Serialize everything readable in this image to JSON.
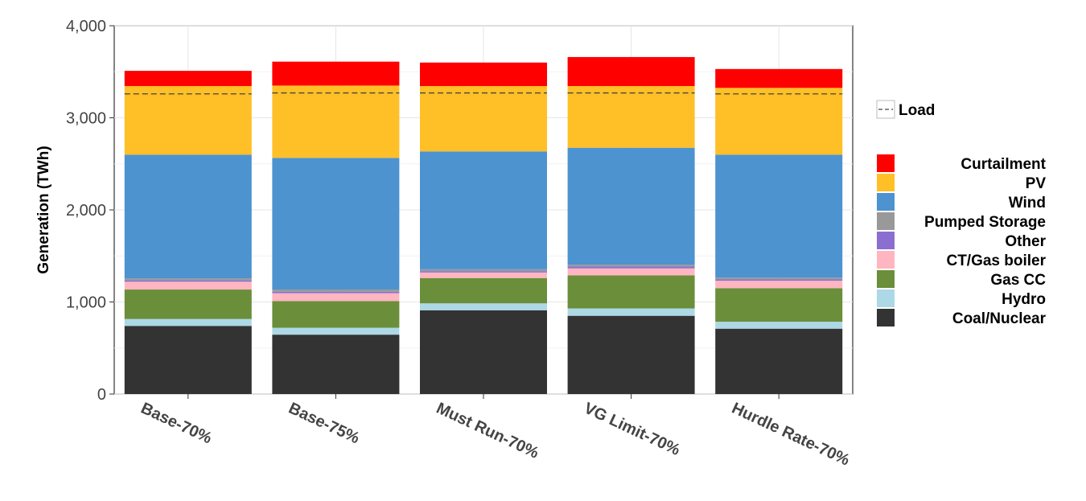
{
  "chart_data": {
    "type": "bar",
    "stacked": true,
    "title": "",
    "xlabel": "",
    "ylabel": "Generation (TWh)",
    "ylim": [
      0,
      4000
    ],
    "yticks": [
      0,
      1000,
      2000,
      3000,
      4000
    ],
    "ytick_labels": [
      "0",
      "1,000",
      "2,000",
      "3,000",
      "4,000"
    ],
    "grid": true,
    "legend_position": "right",
    "categories": [
      "Base-70%",
      "Base-75%",
      "Must Run-70%",
      "VG Limit-70%",
      "Hurdle Rate-70%"
    ],
    "series": [
      {
        "name": "Coal/Nuclear",
        "color": "#333333",
        "values": [
          740,
          645,
          910,
          850,
          710
        ]
      },
      {
        "name": "Hydro",
        "color": "#add8e6",
        "values": [
          75,
          75,
          75,
          80,
          75
        ]
      },
      {
        "name": "Gas CC",
        "color": "#6b8e3a",
        "values": [
          320,
          290,
          275,
          360,
          365
        ]
      },
      {
        "name": "CT/Gas boiler",
        "color": "#ffb6c1",
        "values": [
          85,
          85,
          60,
          75,
          80
        ]
      },
      {
        "name": "Other",
        "color": "#8a6fd0",
        "values": [
          15,
          15,
          15,
          20,
          15
        ]
      },
      {
        "name": "Pumped Storage",
        "color": "#999999",
        "values": [
          20,
          25,
          20,
          20,
          20
        ]
      },
      {
        "name": "Wind",
        "color": "#4c93d0",
        "values": [
          1345,
          1430,
          1280,
          1270,
          1335
        ]
      },
      {
        "name": "PV",
        "color": "#ffbf26",
        "values": [
          745,
          785,
          710,
          670,
          725
        ]
      },
      {
        "name": "Curtailment",
        "color": "#ff0000",
        "values": [
          165,
          260,
          255,
          315,
          205
        ]
      }
    ],
    "load": {
      "name": "Load",
      "values": [
        3260,
        3270,
        3270,
        3270,
        3260
      ]
    }
  }
}
